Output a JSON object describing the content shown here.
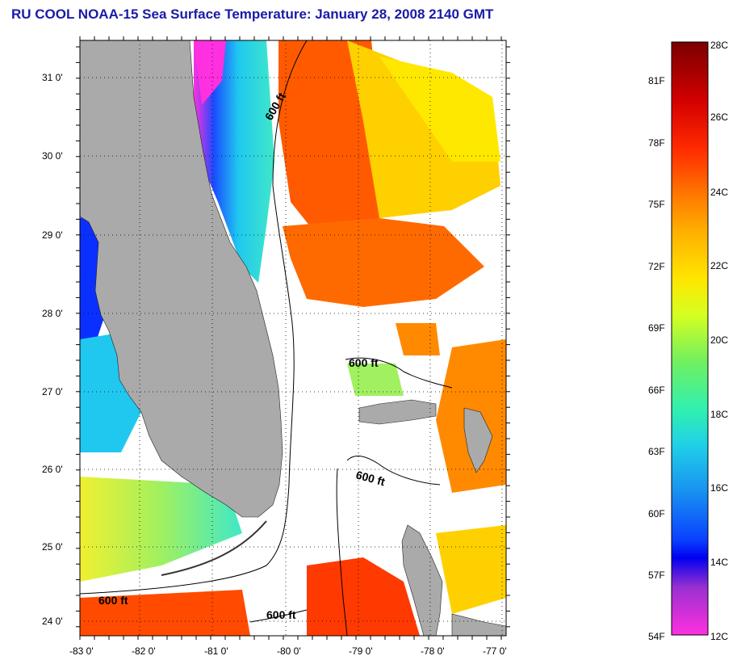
{
  "title": "RU COOL  NOAA-15  Sea Surface Temperature:  January 28, 2008 2140 GMT",
  "map": {
    "lat_labels": [
      "31 0'",
      "30 0'",
      "29 0'",
      "28 0'",
      "27 0'",
      "26 0'",
      "25 0'",
      "24 0'"
    ],
    "lon_labels": [
      "-83 0'",
      "-82 0'",
      "-81 0'",
      "-80 0'",
      "-79 0'",
      "-78 0'",
      "-77 0'"
    ],
    "isobath_labels": [
      "600 ft",
      "600 ft",
      "600 ft",
      "600 ft",
      "600 ft"
    ],
    "colors": {
      "land": "#aaaaaa",
      "cloud_mask": "#ffffff",
      "contour": "#000000"
    }
  },
  "colorbar": {
    "fahrenheit_labels": [
      "81F",
      "78F",
      "75F",
      "72F",
      "69F",
      "66F",
      "63F",
      "60F",
      "57F",
      "54F"
    ],
    "celsius_labels": [
      "28C",
      "26C",
      "24C",
      "22C",
      "20C",
      "18C",
      "16C",
      "14C",
      "12C"
    ],
    "gradient_colors": [
      "#7a0000",
      "#d40000",
      "#ff2a00",
      "#ff7a00",
      "#ffb000",
      "#ffe600",
      "#d6ff20",
      "#70f060",
      "#30f0b0",
      "#20d0e8",
      "#1890f0",
      "#0a40ff",
      "#0000f0",
      "#9a30d0",
      "#ff30e0"
    ]
  }
}
